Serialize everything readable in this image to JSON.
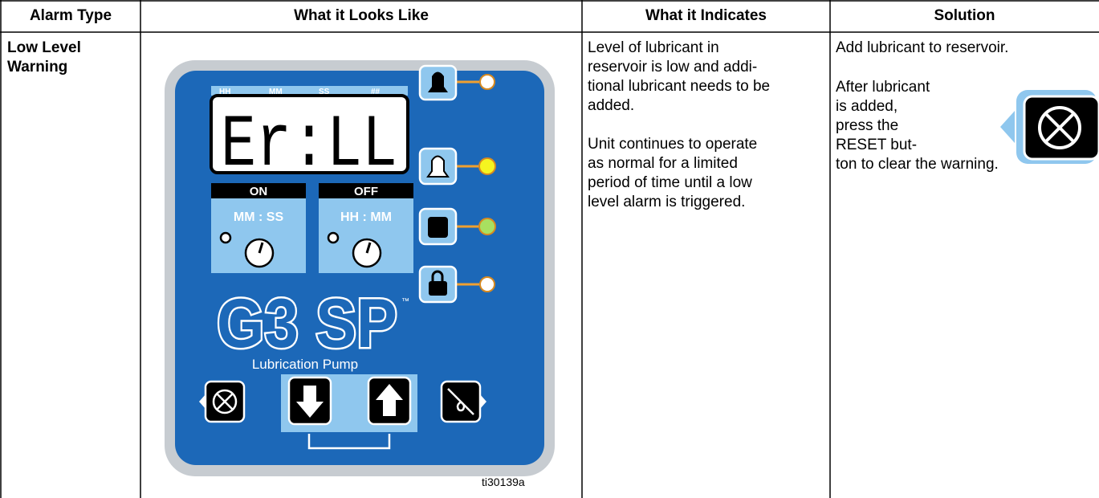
{
  "table": {
    "headers": [
      "Alarm Type",
      "What it Looks Like",
      "What it Indicates",
      "Solution"
    ],
    "row": {
      "alarm_type": [
        "Low Level",
        "Warning"
      ],
      "indicates": {
        "paragraphs": [
          [
            "Level of lubricant in",
            "reservoir is low and addi-",
            "tional lubricant needs to be",
            "added."
          ],
          [
            "Unit continues to operate",
            "as normal for a limited",
            "period of time until a low",
            "level alarm is triggered."
          ]
        ]
      },
      "solution": {
        "first": "Add lubricant to reservoir.",
        "lines": [
          "After lubricant",
          "is added,",
          "press the",
          "RESET but-"
        ],
        "last": "ton to clear the warning."
      }
    }
  },
  "figure": {
    "strip_labels": [
      "HH",
      "MM",
      "SS",
      "##"
    ],
    "display": "Er:LL",
    "on_label": "ON",
    "off_label": "OFF",
    "on_units": "MM : SS",
    "off_units": "HH : MM",
    "logo": "G3 SP",
    "trademark": "™",
    "subtitle": "Lubrication Pump",
    "figure_id": "ti30139a"
  }
}
